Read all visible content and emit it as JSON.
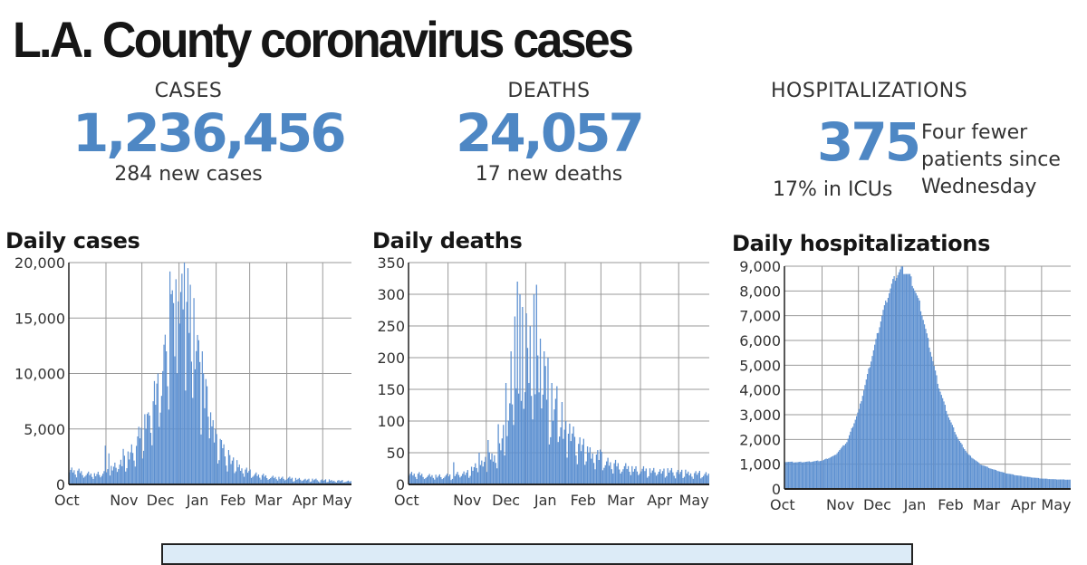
{
  "page_title": "L.A. County coronavirus cases",
  "stats": {
    "cases": {
      "label": "CASES",
      "value": "1,236,456",
      "sub": "284 new cases"
    },
    "deaths": {
      "label": "DEATHS",
      "value": "24,057",
      "sub": "17 new deaths"
    },
    "hospitalizations": {
      "label": "HOSPITALIZATIONS",
      "value": "375",
      "sub": "17% in ICUs",
      "note": "Four fewer patients since Wednesday"
    }
  },
  "colors": {
    "accent": "#4e87c4",
    "bar": "#5b8fd0",
    "grid": "#9a9a9a"
  },
  "chart_data": [
    {
      "type": "bar",
      "title": "Daily cases",
      "ylim": [
        0,
        20000
      ],
      "yticks": [
        0,
        5000,
        10000,
        15000,
        20000
      ],
      "ytick_labels": [
        "0",
        "5,000",
        "10,000",
        "15,000",
        "20,000"
      ],
      "xticks": [
        "Oct",
        "Nov",
        "Dec",
        "Jan",
        "Feb",
        "Mar",
        "Apr",
        "May"
      ],
      "grid": true,
      "anchors": [
        [
          0,
          1400
        ],
        [
          10,
          1100
        ],
        [
          20,
          900
        ],
        [
          31,
          1200
        ],
        [
          40,
          1800
        ],
        [
          50,
          2600
        ],
        [
          61,
          4500
        ],
        [
          70,
          7500
        ],
        [
          80,
          11500
        ],
        [
          87,
          15000
        ],
        [
          92,
          14500
        ],
        [
          97,
          15500
        ],
        [
          102,
          13500
        ],
        [
          107,
          11000
        ],
        [
          115,
          7500
        ],
        [
          123,
          4000
        ],
        [
          131,
          2600
        ],
        [
          141,
          1700
        ],
        [
          151,
          1100
        ],
        [
          161,
          800
        ],
        [
          171,
          650
        ],
        [
          181,
          600
        ],
        [
          191,
          500
        ],
        [
          201,
          450
        ],
        [
          212,
          400
        ],
        [
          222,
          350
        ],
        [
          234,
          300
        ]
      ],
      "spikes": [
        [
          30,
          3500
        ],
        [
          33,
          2800
        ],
        [
          45,
          3200
        ],
        [
          58,
          5200
        ],
        [
          66,
          6500
        ],
        [
          74,
          10000
        ],
        [
          80,
          13500
        ],
        [
          84,
          19200
        ],
        [
          86,
          17500
        ],
        [
          89,
          18500
        ],
        [
          91,
          16500
        ],
        [
          94,
          19000
        ],
        [
          96,
          20000
        ],
        [
          99,
          19500
        ],
        [
          101,
          18000
        ],
        [
          104,
          16800
        ],
        [
          108,
          13000
        ],
        [
          111,
          12000
        ],
        [
          114,
          9500
        ],
        [
          118,
          6500
        ],
        [
          122,
          5000
        ],
        [
          127,
          4000
        ],
        [
          133,
          3100
        ]
      ]
    },
    {
      "type": "bar",
      "title": "Daily deaths",
      "ylim": [
        0,
        350
      ],
      "yticks": [
        0,
        50,
        100,
        150,
        200,
        250,
        300,
        350
      ],
      "ytick_labels": [
        "0",
        "50",
        "100",
        "150",
        "200",
        "250",
        "300",
        "350"
      ],
      "xticks": [
        "Oct",
        "Nov",
        "Dec",
        "Jan",
        "Feb",
        "Mar",
        "Apr",
        "May"
      ],
      "grid": true,
      "anchors": [
        [
          0,
          18
        ],
        [
          15,
          14
        ],
        [
          31,
          14
        ],
        [
          46,
          20
        ],
        [
          61,
          38
        ],
        [
          71,
          55
        ],
        [
          80,
          120
        ],
        [
          88,
          170
        ],
        [
          96,
          190
        ],
        [
          103,
          175
        ],
        [
          111,
          130
        ],
        [
          120,
          95
        ],
        [
          131,
          70
        ],
        [
          141,
          55
        ],
        [
          151,
          42
        ],
        [
          161,
          32
        ],
        [
          171,
          28
        ],
        [
          181,
          24
        ],
        [
          191,
          22
        ],
        [
          201,
          22
        ],
        [
          212,
          20
        ],
        [
          222,
          18
        ],
        [
          234,
          17
        ]
      ],
      "spikes": [
        [
          35,
          35
        ],
        [
          55,
          50
        ],
        [
          62,
          70
        ],
        [
          70,
          95
        ],
        [
          76,
          160
        ],
        [
          80,
          210
        ],
        [
          83,
          265
        ],
        [
          85,
          320
        ],
        [
          87,
          300
        ],
        [
          89,
          280
        ],
        [
          92,
          270
        ],
        [
          95,
          250
        ],
        [
          98,
          300
        ],
        [
          100,
          315
        ],
        [
          103,
          230
        ],
        [
          106,
          210
        ],
        [
          109,
          200
        ],
        [
          112,
          160
        ],
        [
          116,
          155
        ],
        [
          120,
          130
        ],
        [
          125,
          80
        ],
        [
          130,
          75
        ],
        [
          140,
          60
        ],
        [
          150,
          55
        ]
      ]
    },
    {
      "type": "bar",
      "title": "Daily hospitalizations",
      "ylim": [
        0,
        9000
      ],
      "yticks": [
        0,
        1000,
        2000,
        3000,
        4000,
        5000,
        6000,
        7000,
        8000,
        9000
      ],
      "ytick_labels": [
        "0",
        "1,000",
        "2,000",
        "3,000",
        "4,000",
        "5,000",
        "6,000",
        "7,000",
        "8,000",
        "9,000"
      ],
      "xticks": [
        "Oct",
        "Nov",
        "Dec",
        "Jan",
        "Feb",
        "Mar",
        "Apr",
        "May"
      ],
      "grid": true,
      "anchors": [
        [
          0,
          1100
        ],
        [
          10,
          1080
        ],
        [
          20,
          1100
        ],
        [
          31,
          1150
        ],
        [
          41,
          1350
        ],
        [
          51,
          1900
        ],
        [
          61,
          3200
        ],
        [
          71,
          5200
        ],
        [
          81,
          7200
        ],
        [
          89,
          8400
        ],
        [
          96,
          8900
        ],
        [
          103,
          8600
        ],
        [
          111,
          7500
        ],
        [
          119,
          5800
        ],
        [
          127,
          4100
        ],
        [
          135,
          2900
        ],
        [
          143,
          2000
        ],
        [
          151,
          1400
        ],
        [
          161,
          1000
        ],
        [
          171,
          800
        ],
        [
          181,
          650
        ],
        [
          191,
          550
        ],
        [
          201,
          480
        ],
        [
          212,
          420
        ],
        [
          222,
          390
        ],
        [
          234,
          375
        ]
      ],
      "spikes": []
    }
  ]
}
